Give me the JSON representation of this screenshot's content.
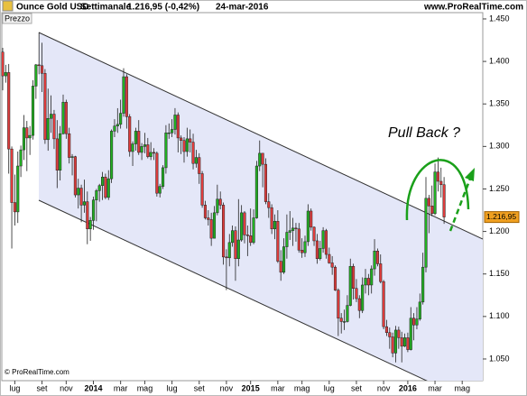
{
  "chart_data": {
    "type": "candlestick",
    "title": "Ounce Gold USD",
    "period": "Settimanale",
    "last_change": "1.216,95 (-0,42%)",
    "date": "24-mar-2016",
    "source": "www.ProRealTime.com",
    "copyright": "© ProRealTime.com",
    "panel_label": "Prezzo",
    "annotation": "Pull Back ?",
    "price_marker": {
      "value": 1216.95,
      "label": "1.216,95"
    },
    "up_color": "#22b022",
    "down_color": "#e03c3c",
    "marker_color": "#f0a020",
    "open": [
      1411,
      1383,
      1387,
      1297,
      1234,
      1223,
      1277,
      1296,
      1322,
      1310,
      1313,
      1371,
      1396,
      1395,
      1386,
      1308,
      1333,
      1338,
      1309,
      1272,
      1315,
      1352,
      1315,
      1287,
      1288,
      1243,
      1251,
      1231,
      1235,
      1203,
      1213,
      1237,
      1248,
      1254,
      1264,
      1240,
      1262,
      1318,
      1324,
      1326,
      1339,
      1382,
      1335,
      1294,
      1303,
      1318,
      1293,
      1300,
      1302,
      1288,
      1293,
      1292,
      1245,
      1253,
      1275,
      1316,
      1316,
      1320,
      1337,
      1310,
      1307,
      1294,
      1309,
      1305,
      1280,
      1287,
      1268,
      1231,
      1216,
      1214,
      1192,
      1222,
      1238,
      1231,
      1170,
      1169,
      1187,
      1201,
      1168,
      1190,
      1222,
      1196,
      1195,
      1187,
      1216,
      1277,
      1292,
      1279,
      1235,
      1228,
      1203,
      1212,
      1165,
      1152,
      1182,
      1199,
      1201,
      1204,
      1203,
      1178,
      1175,
      1188,
      1224,
      1205,
      1189,
      1168,
      1180,
      1201,
      1173,
      1163,
      1158,
      1131,
      1098,
      1094,
      1094,
      1113,
      1159,
      1133,
      1121,
      1107,
      1137,
      1145,
      1137,
      1156,
      1177,
      1162,
      1141,
      1088,
      1081,
      1076,
      1057,
      1084,
      1075,
      1065,
      1075,
      1061,
      1098,
      1090,
      1097,
      1117,
      1158,
      1239,
      1230,
      1221,
      1270,
      1259,
      1255
    ],
    "high": [
      1416,
      1396,
      1397,
      1300,
      1267,
      1294,
      1301,
      1337,
      1330,
      1324,
      1378,
      1397,
      1434,
      1422,
      1391,
      1368,
      1360,
      1343,
      1331,
      1324,
      1361,
      1355,
      1322,
      1291,
      1289,
      1262,
      1255,
      1261,
      1247,
      1217,
      1241,
      1250,
      1256,
      1270,
      1268,
      1272,
      1320,
      1332,
      1345,
      1355,
      1392,
      1385,
      1338,
      1306,
      1322,
      1331,
      1304,
      1316,
      1310,
      1305,
      1298,
      1294,
      1256,
      1278,
      1325,
      1327,
      1332,
      1345,
      1340,
      1313,
      1311,
      1322,
      1320,
      1315,
      1296,
      1292,
      1271,
      1236,
      1225,
      1222,
      1230,
      1255,
      1247,
      1234,
      1179,
      1197,
      1207,
      1206,
      1238,
      1231,
      1224,
      1207,
      1227,
      1226,
      1283,
      1307,
      1292,
      1286,
      1245,
      1232,
      1220,
      1225,
      1178,
      1192,
      1220,
      1224,
      1216,
      1210,
      1210,
      1192,
      1195,
      1232,
      1227,
      1206,
      1197,
      1189,
      1205,
      1203,
      1181,
      1171,
      1160,
      1133,
      1104,
      1108,
      1125,
      1168,
      1162,
      1144,
      1125,
      1146,
      1156,
      1150,
      1160,
      1191,
      1180,
      1173,
      1143,
      1096,
      1087,
      1081,
      1089,
      1088,
      1082,
      1080,
      1081,
      1111,
      1104,
      1111,
      1127,
      1175,
      1264,
      1243,
      1254,
      1280,
      1287,
      1275,
      1264
    ],
    "low": [
      1366,
      1375,
      1268,
      1180,
      1207,
      1210,
      1264,
      1284,
      1271,
      1290,
      1308,
      1356,
      1385,
      1364,
      1303,
      1295,
      1316,
      1297,
      1251,
      1260,
      1314,
      1309,
      1280,
      1266,
      1240,
      1227,
      1211,
      1222,
      1185,
      1189,
      1202,
      1212,
      1235,
      1237,
      1238,
      1237,
      1257,
      1311,
      1316,
      1321,
      1335,
      1321,
      1288,
      1277,
      1295,
      1290,
      1284,
      1292,
      1286,
      1284,
      1284,
      1241,
      1240,
      1250,
      1268,
      1309,
      1311,
      1314,
      1293,
      1291,
      1281,
      1288,
      1293,
      1273,
      1275,
      1256,
      1228,
      1214,
      1207,
      1183,
      1192,
      1219,
      1226,
      1161,
      1131,
      1159,
      1182,
      1142,
      1159,
      1188,
      1186,
      1171,
      1183,
      1185,
      1215,
      1271,
      1252,
      1232,
      1216,
      1197,
      1191,
      1163,
      1142,
      1150,
      1168,
      1190,
      1183,
      1188,
      1175,
      1169,
      1170,
      1183,
      1201,
      1183,
      1162,
      1166,
      1175,
      1168,
      1162,
      1149,
      1130,
      1077,
      1080,
      1084,
      1093,
      1112,
      1120,
      1117,
      1098,
      1104,
      1127,
      1125,
      1127,
      1148,
      1159,
      1139,
      1085,
      1077,
      1062,
      1052,
      1046,
      1062,
      1046,
      1064,
      1058,
      1060,
      1072,
      1085,
      1095,
      1114,
      1152,
      1198,
      1218,
      1219,
      1247,
      1240,
      1209
    ],
    "close": [
      1383,
      1387,
      1297,
      1234,
      1223,
      1277,
      1296,
      1322,
      1310,
      1313,
      1371,
      1396,
      1395,
      1386,
      1308,
      1333,
      1338,
      1309,
      1272,
      1315,
      1352,
      1315,
      1287,
      1288,
      1243,
      1251,
      1231,
      1235,
      1203,
      1213,
      1237,
      1248,
      1254,
      1264,
      1240,
      1262,
      1318,
      1324,
      1326,
      1339,
      1382,
      1335,
      1294,
      1303,
      1318,
      1293,
      1300,
      1302,
      1288,
      1293,
      1292,
      1245,
      1253,
      1275,
      1316,
      1316,
      1320,
      1337,
      1310,
      1307,
      1294,
      1309,
      1305,
      1280,
      1287,
      1268,
      1231,
      1216,
      1214,
      1192,
      1222,
      1238,
      1231,
      1170,
      1169,
      1187,
      1201,
      1168,
      1190,
      1222,
      1196,
      1195,
      1187,
      1216,
      1277,
      1292,
      1279,
      1235,
      1228,
      1203,
      1212,
      1165,
      1152,
      1182,
      1199,
      1201,
      1204,
      1203,
      1178,
      1175,
      1188,
      1224,
      1205,
      1189,
      1168,
      1180,
      1201,
      1173,
      1163,
      1158,
      1131,
      1098,
      1094,
      1094,
      1113,
      1159,
      1133,
      1121,
      1107,
      1137,
      1145,
      1137,
      1156,
      1177,
      1162,
      1141,
      1088,
      1081,
      1076,
      1057,
      1084,
      1075,
      1065,
      1075,
      1061,
      1098,
      1090,
      1097,
      1117,
      1158,
      1239,
      1230,
      1221,
      1270,
      1259,
      1255,
      1216.95
    ],
    "xticks": [
      {
        "value": 4,
        "label": "lug"
      },
      {
        "value": 13,
        "label": "set"
      },
      {
        "value": 21,
        "label": "nov"
      },
      {
        "value": 30,
        "label": "2014"
      },
      {
        "value": 39,
        "label": "mar"
      },
      {
        "value": 47,
        "label": "mag"
      },
      {
        "value": 56,
        "label": "lug"
      },
      {
        "value": 65,
        "label": "set"
      },
      {
        "value": 74,
        "label": "nov"
      },
      {
        "value": 82,
        "label": "2015"
      },
      {
        "value": 91,
        "label": "mar"
      },
      {
        "value": 99,
        "label": "mag"
      },
      {
        "value": 108,
        "label": "lug"
      },
      {
        "value": 117,
        "label": "set"
      },
      {
        "value": 126,
        "label": "nov"
      },
      {
        "value": 134,
        "label": "2016"
      },
      {
        "value": 143,
        "label": "mar"
      },
      {
        "value": 152,
        "label": "mag"
      }
    ],
    "ylim": [
      1024.5,
      1457.4
    ],
    "yticks": [
      {
        "value": 1050,
        "label": "1.050"
      },
      {
        "value": 1100,
        "label": "1.100"
      },
      {
        "value": 1150,
        "label": "1.150"
      },
      {
        "value": 1200,
        "label": "1.200"
      },
      {
        "value": 1250,
        "label": "1.250"
      },
      {
        "value": 1300,
        "label": "1.300"
      },
      {
        "value": 1350,
        "label": "1.350"
      },
      {
        "value": 1400,
        "label": "1.400"
      },
      {
        "value": 1450,
        "label": "1.450"
      }
    ]
  }
}
